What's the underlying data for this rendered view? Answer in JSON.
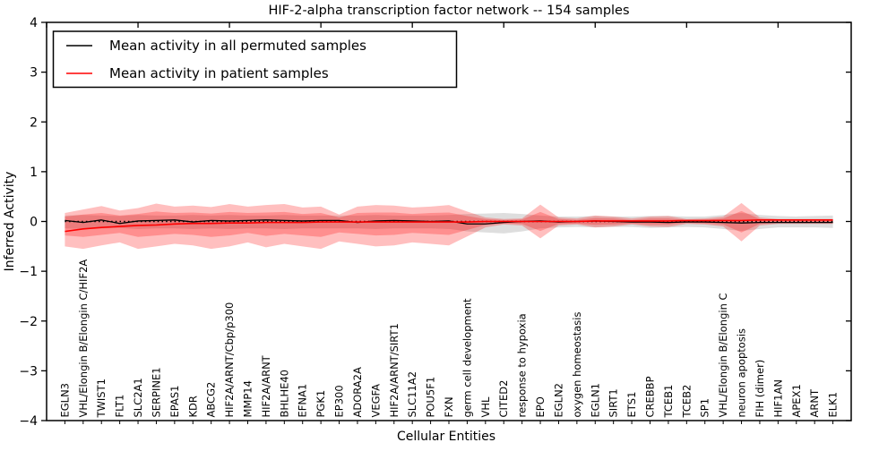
{
  "title": "HIF-2-alpha transcription factor network -- 154 samples",
  "axes": {
    "xlabel": "Cellular Entities",
    "ylabel": "Inferred Activity"
  },
  "legend": {
    "entries": [
      {
        "label": "Mean activity in all permuted samples",
        "color": "#000000"
      },
      {
        "label": "Mean activity in patient samples",
        "color": "#ff0000"
      }
    ]
  },
  "chart_data": {
    "type": "line",
    "title": "HIF-2-alpha transcription factor network -- 154 samples",
    "xlabel": "Cellular Entities",
    "ylabel": "Inferred Activity",
    "ylim": [
      -4,
      4
    ],
    "yticks": [
      -4,
      -3,
      -2,
      -1,
      0,
      1,
      2,
      3,
      4
    ],
    "xlim": [
      0,
      44
    ],
    "top_ticks": [
      0,
      5,
      10,
      15,
      20,
      25,
      30,
      35,
      40
    ],
    "grid": false,
    "legend_position": "upper left",
    "categories": [
      "EGLN3",
      "VHL/Elongin B/Elongin C/HIF2A",
      "TWIST1",
      "FLT1",
      "SLC2A1",
      "SERPINE1",
      "EPAS1",
      "KDR",
      "ABCG2",
      "HIF2A/ARNT/Cbp/p300",
      "MMP14",
      "HIF2A/ARNT",
      "BHLHE40",
      "EFNA1",
      "PGK1",
      "EP300",
      "ADORA2A",
      "VEGFA",
      "HIF2A/ARNT/SIRT1",
      "SLC11A2",
      "POU5F1",
      "FXN",
      "germ cell development",
      "VHL",
      "CITED2",
      "response to hypoxia",
      "EPO",
      "EGLN2",
      "oxygen homeostasis",
      "EGLN1",
      "SIRT1",
      "ETS1",
      "CREBBP",
      "TCEB1",
      "TCEB2",
      "SP1",
      "VHL/Elongin B/Elongin C",
      "neuron apoptosis",
      "FIH (dimer)",
      "HIF1AN",
      "APEX1",
      "ARNT",
      "ELK1"
    ],
    "series": [
      {
        "name": "Mean activity in all permuted samples",
        "color": "#000000",
        "width": 1.3,
        "values": [
          0.02,
          -0.02,
          0.03,
          -0.04,
          0.01,
          0.02,
          0.03,
          -0.01,
          0.02,
          0.01,
          0.02,
          0.03,
          0.02,
          0.01,
          0.02,
          0.02,
          -0.02,
          0.01,
          0.02,
          0.01,
          0.0,
          0.01,
          -0.05,
          -0.05,
          -0.02,
          0.0,
          0.01,
          -0.01,
          0.0,
          0.01,
          0.0,
          -0.01,
          -0.01,
          -0.02,
          -0.01,
          -0.01,
          -0.02,
          -0.03,
          -0.02,
          -0.02,
          -0.02,
          -0.02,
          -0.02
        ]
      },
      {
        "name": "Mean activity in patient samples",
        "color": "#ff0000",
        "width": 1.6,
        "values": [
          -0.2,
          -0.15,
          -0.12,
          -0.1,
          -0.08,
          -0.07,
          -0.05,
          -0.04,
          -0.04,
          -0.03,
          -0.03,
          -0.02,
          -0.02,
          -0.02,
          -0.01,
          -0.01,
          -0.01,
          -0.01,
          -0.01,
          -0.01,
          -0.01,
          -0.01,
          -0.01,
          0.0,
          0.0,
          0.0,
          0.0,
          0.0,
          0.0,
          0.01,
          0.01,
          0.01,
          0.01,
          0.01,
          0.02,
          0.02,
          0.02,
          0.02,
          0.03,
          0.03,
          0.03,
          0.03,
          0.03
        ]
      }
    ],
    "bands": [
      {
        "name": "permuted-samples-range",
        "color": "#888888",
        "opacity": 0.28,
        "upper": [
          0.12,
          0.13,
          0.12,
          0.11,
          0.13,
          0.12,
          0.12,
          0.13,
          0.12,
          0.13,
          0.12,
          0.12,
          0.13,
          0.12,
          0.12,
          0.12,
          0.12,
          0.13,
          0.12,
          0.12,
          0.12,
          0.13,
          0.15,
          0.16,
          0.17,
          0.15,
          0.12,
          0.1,
          0.1,
          0.11,
          0.1,
          0.1,
          0.11,
          0.11,
          0.1,
          0.1,
          0.13,
          0.17,
          0.13,
          0.11,
          0.1,
          0.11,
          0.12
        ],
        "lower": [
          -0.14,
          -0.15,
          -0.14,
          -0.13,
          -0.15,
          -0.14,
          -0.14,
          -0.15,
          -0.14,
          -0.15,
          -0.14,
          -0.14,
          -0.15,
          -0.14,
          -0.14,
          -0.14,
          -0.14,
          -0.15,
          -0.14,
          -0.14,
          -0.14,
          -0.15,
          -0.2,
          -0.22,
          -0.24,
          -0.2,
          -0.14,
          -0.12,
          -0.11,
          -0.12,
          -0.11,
          -0.11,
          -0.13,
          -0.12,
          -0.11,
          -0.12,
          -0.15,
          -0.19,
          -0.15,
          -0.12,
          -0.12,
          -0.12,
          -0.13
        ]
      },
      {
        "name": "patient-samples-range-outer",
        "color": "#ff0000",
        "opacity": 0.25,
        "upper": [
          0.17,
          0.24,
          0.31,
          0.22,
          0.27,
          0.36,
          0.3,
          0.32,
          0.29,
          0.35,
          0.3,
          0.33,
          0.35,
          0.28,
          0.3,
          0.14,
          0.3,
          0.33,
          0.32,
          0.28,
          0.3,
          0.33,
          0.2,
          0.08,
          0.05,
          0.06,
          0.34,
          0.08,
          0.06,
          0.12,
          0.1,
          0.06,
          0.1,
          0.11,
          0.05,
          0.06,
          0.1,
          0.37,
          0.08,
          0.05,
          0.05,
          0.05,
          0.05
        ],
        "lower": [
          -0.5,
          -0.55,
          -0.48,
          -0.42,
          -0.55,
          -0.5,
          -0.45,
          -0.48,
          -0.55,
          -0.5,
          -0.42,
          -0.52,
          -0.45,
          -0.5,
          -0.55,
          -0.4,
          -0.45,
          -0.5,
          -0.48,
          -0.42,
          -0.45,
          -0.48,
          -0.3,
          -0.12,
          -0.06,
          -0.08,
          -0.34,
          -0.08,
          -0.06,
          -0.12,
          -0.1,
          -0.06,
          -0.1,
          -0.11,
          -0.05,
          -0.06,
          -0.1,
          -0.4,
          -0.08,
          -0.05,
          -0.05,
          -0.05,
          -0.05
        ]
      },
      {
        "name": "patient-samples-range-inner",
        "color": "#ff0000",
        "opacity": 0.25,
        "upper": [
          0.1,
          0.14,
          0.17,
          0.12,
          0.15,
          0.2,
          0.17,
          0.18,
          0.16,
          0.19,
          0.17,
          0.18,
          0.19,
          0.15,
          0.17,
          0.08,
          0.17,
          0.18,
          0.18,
          0.15,
          0.17,
          0.18,
          0.11,
          0.05,
          0.03,
          0.04,
          0.19,
          0.05,
          0.03,
          0.07,
          0.06,
          0.03,
          0.06,
          0.06,
          0.03,
          0.03,
          0.06,
          0.21,
          0.05,
          0.03,
          0.03,
          0.03,
          0.03
        ],
        "lower": [
          -0.28,
          -0.31,
          -0.27,
          -0.23,
          -0.31,
          -0.28,
          -0.25,
          -0.27,
          -0.31,
          -0.28,
          -0.23,
          -0.29,
          -0.25,
          -0.28,
          -0.31,
          -0.22,
          -0.25,
          -0.28,
          -0.27,
          -0.23,
          -0.25,
          -0.27,
          -0.17,
          -0.07,
          -0.04,
          -0.05,
          -0.19,
          -0.05,
          -0.04,
          -0.07,
          -0.06,
          -0.04,
          -0.06,
          -0.06,
          -0.03,
          -0.04,
          -0.06,
          -0.22,
          -0.05,
          -0.03,
          -0.03,
          -0.03,
          -0.03
        ]
      }
    ],
    "zero_line": {
      "y": 0,
      "style": "dashed",
      "color": "#000000"
    }
  }
}
